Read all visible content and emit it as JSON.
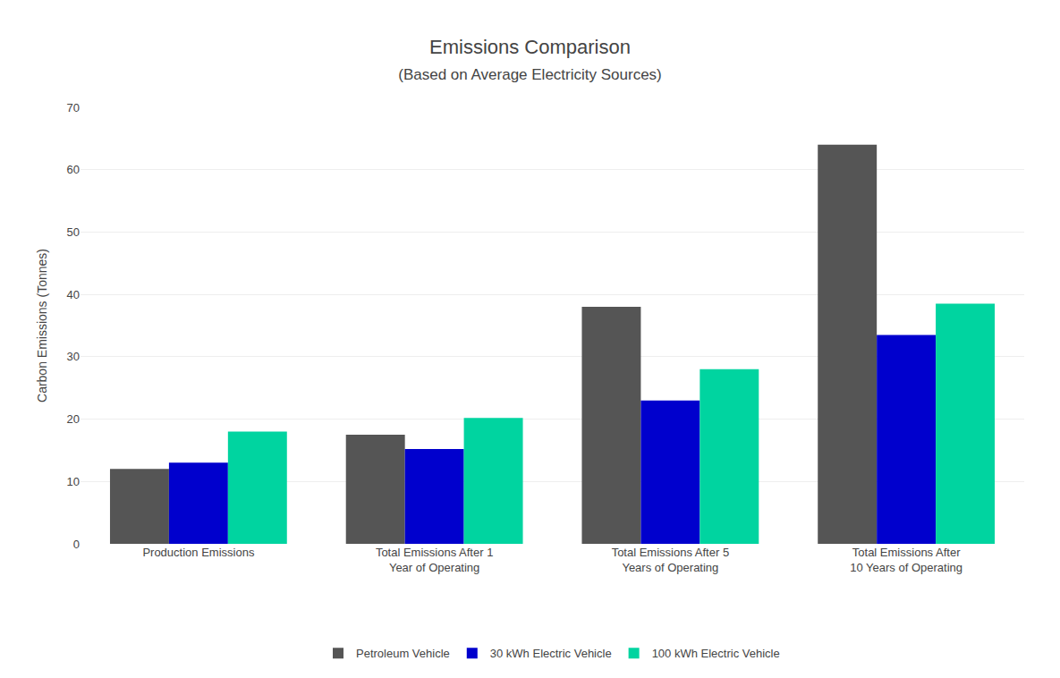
{
  "chart_data": {
    "type": "bar",
    "title": "Emissions Comparison",
    "subtitle": "(Based on Average Electricity Sources)",
    "categories": [
      "Production Emissions",
      "Total Emissions After 1\nYear of Operating",
      "Total Emissions After 5\nYears of Operating",
      "Total Emissions After\n10 Years of Operating"
    ],
    "series": [
      {
        "name": "Petroleum Vehicle",
        "color": "#555555",
        "values": [
          12,
          17.5,
          38,
          64
        ]
      },
      {
        "name": "30 kWh Electric Vehicle",
        "color": "#0000CD",
        "values": [
          13,
          15.2,
          23,
          33.5
        ]
      },
      {
        "name": "100 kWh Electric Vehicle",
        "color": "#00D4A0",
        "values": [
          18,
          20.2,
          28,
          38.5
        ]
      }
    ],
    "ylabel": "Carbon Emissions (Tonnes)",
    "ylim": [
      0,
      70
    ],
    "yticks": [
      0,
      10,
      20,
      30,
      40,
      50,
      60,
      70
    ],
    "grid": true,
    "legend": "bottom"
  }
}
